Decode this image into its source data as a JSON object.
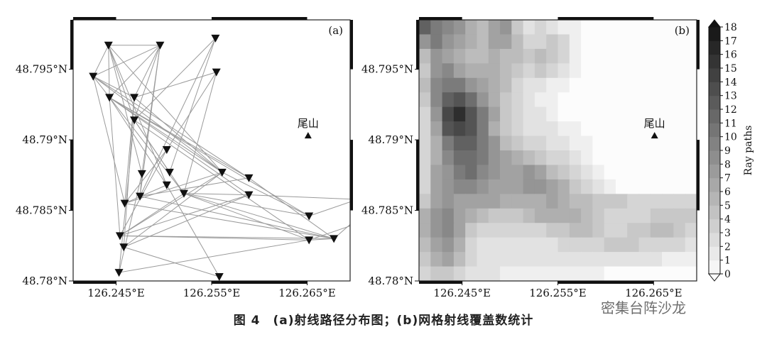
{
  "caption": "图 4　(a)射线路径分布图；(b)网格射线覆盖数统计",
  "watermark": "密集台阵沙龙",
  "chart_data": [
    {
      "panel": "(a)",
      "type": "scatter",
      "title": "",
      "xlabel": "",
      "ylabel": "",
      "xlim": [
        126.2405,
        126.2695
      ],
      "ylim": [
        48.78,
        48.7985
      ],
      "xticks": [
        126.245,
        126.255,
        126.265
      ],
      "xtick_labels": [
        "126.245°E",
        "126.255°E",
        "126.265°E"
      ],
      "yticks": [
        48.78,
        48.785,
        48.79,
        48.795
      ],
      "ytick_labels": [
        "48.78°N",
        "48.785°N",
        "48.79°N",
        "48.795°N"
      ],
      "stations": [
        {
          "x": 126.2442,
          "y": 48.7967
        },
        {
          "x": 126.2496,
          "y": 48.7967
        },
        {
          "x": 126.2554,
          "y": 48.7972
        },
        {
          "x": 126.2426,
          "y": 48.7945
        },
        {
          "x": 126.2555,
          "y": 48.7948
        },
        {
          "x": 126.2443,
          "y": 48.793
        },
        {
          "x": 126.2469,
          "y": 48.793
        },
        {
          "x": 126.2469,
          "y": 48.7914
        },
        {
          "x": 126.2503,
          "y": 48.7893
        },
        {
          "x": 126.2477,
          "y": 48.7876
        },
        {
          "x": 126.2506,
          "y": 48.7877
        },
        {
          "x": 126.2561,
          "y": 48.7877
        },
        {
          "x": 126.2589,
          "y": 48.7873
        },
        {
          "x": 126.2503,
          "y": 48.7868
        },
        {
          "x": 126.2521,
          "y": 48.7862
        },
        {
          "x": 126.2475,
          "y": 48.786
        },
        {
          "x": 126.2589,
          "y": 48.7861
        },
        {
          "x": 126.2459,
          "y": 48.7855
        },
        {
          "x": 126.2652,
          "y": 48.7846
        },
        {
          "x": 126.2454,
          "y": 48.7832
        },
        {
          "x": 126.2458,
          "y": 48.7824
        },
        {
          "x": 126.2652,
          "y": 48.7829
        },
        {
          "x": 126.2678,
          "y": 48.783
        },
        {
          "x": 126.2453,
          "y": 48.7806
        },
        {
          "x": 126.2558,
          "y": 48.7803
        }
      ],
      "ray_paths": [
        [
          0,
          1
        ],
        [
          0,
          3
        ],
        [
          0,
          5
        ],
        [
          0,
          7
        ],
        [
          0,
          9
        ],
        [
          0,
          13
        ],
        [
          0,
          11
        ],
        [
          1,
          5
        ],
        [
          1,
          6
        ],
        [
          1,
          7
        ],
        [
          1,
          9
        ],
        [
          1,
          15
        ],
        [
          1,
          3
        ],
        [
          2,
          7
        ],
        [
          2,
          10
        ],
        [
          2,
          15
        ],
        [
          3,
          6
        ],
        [
          3,
          11
        ],
        [
          3,
          12
        ],
        [
          3,
          14
        ],
        [
          3,
          17
        ],
        [
          4,
          8
        ],
        [
          4,
          14
        ],
        [
          4,
          6
        ],
        [
          5,
          11
        ],
        [
          5,
          12
        ],
        [
          5,
          16
        ],
        [
          5,
          18
        ],
        [
          5,
          19
        ],
        [
          5,
          13
        ],
        [
          6,
          17
        ],
        [
          6,
          20
        ],
        [
          6,
          11
        ],
        [
          7,
          10
        ],
        [
          7,
          14
        ],
        [
          7,
          21
        ],
        [
          7,
          23
        ],
        [
          8,
          17
        ],
        [
          8,
          19
        ],
        [
          9,
          23
        ],
        [
          9,
          15
        ],
        [
          11,
          19
        ],
        [
          11,
          17
        ],
        [
          11,
          18
        ],
        [
          11,
          20
        ],
        [
          12,
          15
        ],
        [
          12,
          22
        ],
        [
          13,
          17
        ],
        [
          13,
          24
        ],
        [
          14,
          16
        ],
        [
          14,
          19
        ],
        [
          14,
          21
        ],
        [
          15,
          22
        ],
        [
          16,
          20
        ],
        [
          16,
          19
        ],
        [
          17,
          22
        ],
        [
          19,
          21
        ],
        [
          19,
          22
        ],
        [
          20,
          24
        ],
        [
          21,
          23
        ],
        [
          21,
          22
        ],
        [
          14,
          18
        ],
        [
          14,
          22
        ]
      ],
      "extra_paths_to_edge": [
        {
          "from": 16,
          "to": {
            "x": 126.2695,
            "y": 48.7858
          }
        },
        {
          "from": 18,
          "to": {
            "x": 126.2695,
            "y": 48.7856
          }
        },
        {
          "from": 21,
          "to": {
            "x": 126.2695,
            "y": 48.7839
          }
        },
        {
          "from": 22,
          "to": {
            "x": 126.2695,
            "y": 48.784
          }
        }
      ],
      "landmark": {
        "label": "尾山",
        "x": 126.2651,
        "y": 48.7903
      }
    },
    {
      "panel": "(b)",
      "type": "heatmap",
      "title": "",
      "xlim": [
        126.2405,
        126.2695
      ],
      "ylim": [
        48.78,
        48.7985
      ],
      "xticks": [
        126.245,
        126.255,
        126.265
      ],
      "xtick_labels": [
        "126.245°E",
        "126.255°E",
        "126.265°E"
      ],
      "yticks": [
        48.78,
        48.785,
        48.79,
        48.795
      ],
      "ytick_labels": [
        "48.78°N",
        "48.785°N",
        "48.79°N",
        "48.795°N"
      ],
      "colorbar": {
        "label": "Ray paths",
        "min": 0,
        "max": 18,
        "ticks": [
          0,
          1,
          2,
          3,
          4,
          5,
          6,
          7,
          8,
          9,
          10,
          11,
          12,
          13,
          14,
          15,
          16,
          17,
          18
        ]
      },
      "grid_cols": 24,
      "grid_rows": 18,
      "cells": [
        [
          12,
          10,
          9,
          8,
          6,
          5,
          7,
          8,
          4,
          2,
          3,
          2,
          1,
          1,
          0,
          0,
          0,
          0,
          0,
          0,
          0,
          0,
          0,
          0
        ],
        [
          8,
          10,
          8,
          7,
          6,
          5,
          7,
          7,
          5,
          3,
          3,
          4,
          3,
          1,
          0,
          0,
          0,
          0,
          0,
          0,
          0,
          0,
          0,
          0
        ],
        [
          5,
          8,
          7,
          6,
          5,
          5,
          6,
          5,
          5,
          4,
          5,
          4,
          3,
          1,
          0,
          0,
          0,
          0,
          0,
          0,
          0,
          0,
          0,
          0
        ],
        [
          4,
          8,
          9,
          7,
          6,
          6,
          6,
          5,
          4,
          3,
          4,
          3,
          2,
          1,
          0,
          0,
          0,
          0,
          0,
          0,
          0,
          0,
          0,
          0
        ],
        [
          5,
          9,
          10,
          10,
          8,
          7,
          6,
          5,
          3,
          2,
          2,
          1,
          1,
          0,
          0,
          0,
          0,
          0,
          0,
          0,
          0,
          0,
          0,
          0
        ],
        [
          4,
          9,
          12,
          13,
          11,
          8,
          6,
          4,
          3,
          2,
          1,
          1,
          0,
          0,
          0,
          0,
          0,
          0,
          0,
          0,
          0,
          0,
          0,
          0
        ],
        [
          3,
          8,
          14,
          16,
          13,
          10,
          7,
          4,
          3,
          2,
          2,
          1,
          0,
          0,
          0,
          0,
          0,
          0,
          0,
          0,
          0,
          0,
          0,
          0
        ],
        [
          3,
          7,
          13,
          14,
          13,
          10,
          6,
          4,
          3,
          2,
          2,
          2,
          1,
          1,
          0,
          0,
          0,
          0,
          0,
          0,
          0,
          0,
          0,
          0
        ],
        [
          3,
          6,
          10,
          12,
          12,
          10,
          8,
          5,
          4,
          3,
          3,
          2,
          2,
          1,
          1,
          0,
          0,
          0,
          0,
          0,
          0,
          0,
          0,
          0
        ],
        [
          3,
          6,
          9,
          11,
          11,
          10,
          8,
          7,
          6,
          5,
          4,
          3,
          3,
          2,
          1,
          0,
          0,
          0,
          0,
          0,
          0,
          0,
          0,
          0
        ],
        [
          3,
          7,
          8,
          10,
          11,
          9,
          8,
          7,
          7,
          8,
          7,
          5,
          4,
          3,
          2,
          1,
          0,
          0,
          0,
          0,
          0,
          0,
          0,
          0
        ],
        [
          3,
          7,
          8,
          9,
          9,
          8,
          7,
          7,
          7,
          8,
          8,
          7,
          6,
          4,
          3,
          2,
          1,
          0,
          0,
          0,
          0,
          0,
          0,
          0
        ],
        [
          4,
          7,
          8,
          7,
          7,
          7,
          7,
          6,
          6,
          6,
          6,
          7,
          6,
          5,
          5,
          4,
          4,
          4,
          3,
          3,
          3,
          3,
          3,
          3
        ],
        [
          6,
          8,
          9,
          7,
          6,
          5,
          4,
          4,
          4,
          5,
          6,
          6,
          6,
          6,
          5,
          4,
          3,
          3,
          3,
          3,
          4,
          4,
          4,
          4
        ],
        [
          6,
          8,
          9,
          7,
          4,
          3,
          3,
          3,
          3,
          3,
          3,
          4,
          4,
          5,
          5,
          4,
          3,
          3,
          4,
          4,
          5,
          5,
          4,
          3
        ],
        [
          5,
          7,
          8,
          6,
          3,
          2,
          2,
          2,
          2,
          2,
          2,
          2,
          3,
          3,
          3,
          3,
          4,
          4,
          4,
          3,
          3,
          3,
          3,
          2
        ],
        [
          4,
          6,
          7,
          5,
          3,
          2,
          2,
          2,
          2,
          2,
          2,
          2,
          2,
          2,
          2,
          2,
          2,
          2,
          2,
          2,
          2,
          1,
          1,
          1
        ],
        [
          3,
          4,
          4,
          3,
          2,
          2,
          2,
          1,
          1,
          1,
          1,
          1,
          1,
          1,
          1,
          1,
          0,
          0,
          0,
          0,
          0,
          0,
          0,
          0
        ]
      ],
      "landmark": {
        "label": "尾山",
        "x": 126.2651,
        "y": 48.7903
      }
    }
  ]
}
